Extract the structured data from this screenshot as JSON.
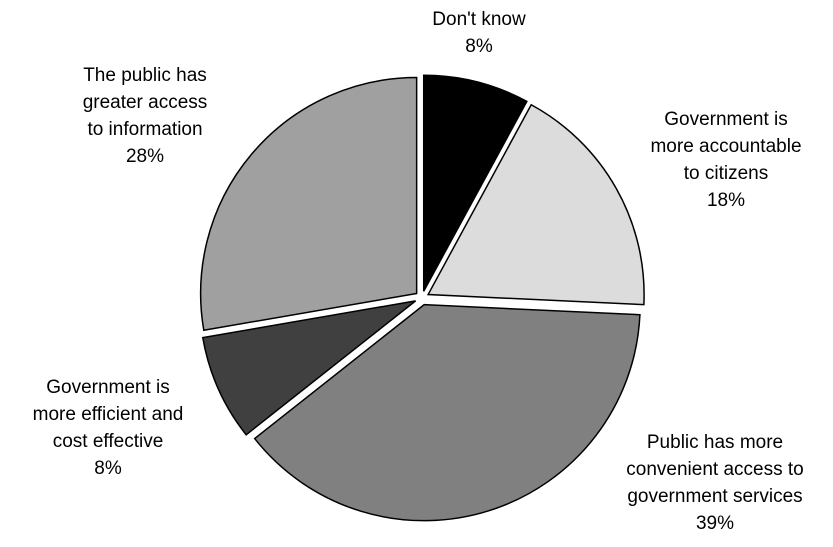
{
  "chart_data": {
    "type": "pie",
    "title": "",
    "slices": [
      {
        "label_lines": [
          "Don't know"
        ],
        "pct_label": "8%",
        "value": 8,
        "color": "#000000"
      },
      {
        "label_lines": [
          "Government is",
          "more accountable",
          "to citizens"
        ],
        "pct_label": "18%",
        "value": 18,
        "color": "#dcdcdc"
      },
      {
        "label_lines": [
          "Public has more",
          "convenient access to",
          "government services"
        ],
        "pct_label": "39%",
        "value": 39,
        "color": "#808080"
      },
      {
        "label_lines": [
          "Government is",
          "more efficient and",
          "cost effective"
        ],
        "pct_label": "8%",
        "value": 8,
        "color": "#404040"
      },
      {
        "label_lines": [
          "The public has",
          "greater access",
          "to information"
        ],
        "pct_label": "28%",
        "value": 28,
        "color": "#a0a0a0"
      }
    ]
  }
}
